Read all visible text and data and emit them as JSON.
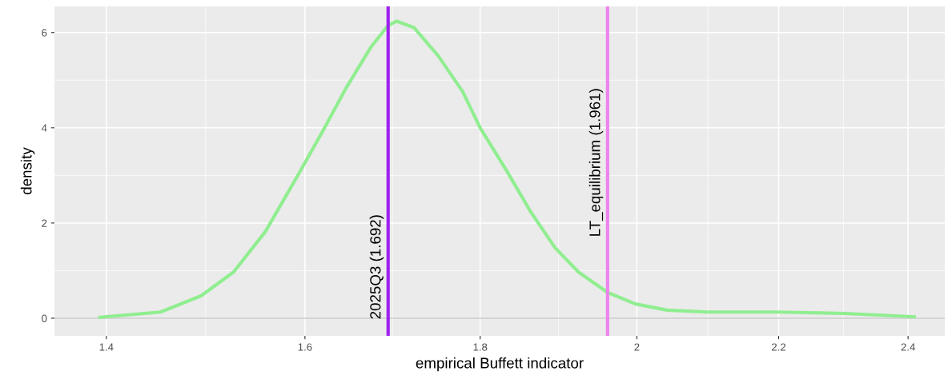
{
  "chart_data": {
    "type": "line",
    "xlabel": "empirical Buffett indicator",
    "ylabel": "density",
    "log": "x",
    "xlim": [
      1.352,
      2.46
    ],
    "ylim": [
      -0.37,
      6.55
    ],
    "xticks": [
      1.4,
      1.6,
      1.8,
      2,
      2.2,
      2.4
    ],
    "yticks": [
      0,
      2,
      4,
      6
    ],
    "grid": true,
    "series": [
      {
        "color": "#90ee90",
        "x": [
          1.394,
          1.452,
          1.492,
          1.525,
          1.558,
          1.592,
          1.619,
          1.645,
          1.672,
          1.692,
          1.702,
          1.722,
          1.75,
          1.779,
          1.8,
          1.833,
          1.862,
          1.893,
          1.923,
          1.961,
          1.998,
          2.041,
          2.097,
          2.2,
          2.3,
          2.41
        ],
        "values": [
          0.02,
          0.13,
          0.47,
          0.97,
          1.82,
          2.99,
          3.92,
          4.84,
          5.68,
          6.15,
          6.24,
          6.1,
          5.51,
          4.76,
          4.0,
          3.08,
          2.24,
          1.48,
          0.97,
          0.54,
          0.3,
          0.17,
          0.13,
          0.13,
          0.1,
          0.03
        ]
      }
    ],
    "ref_lines": [
      {
        "axis": "y",
        "value": 0,
        "color": "#c8c8c8"
      },
      {
        "axis": "x",
        "value": 1.692,
        "label": "2025Q3 (1.692)",
        "color": "#a020f0"
      },
      {
        "axis": "x",
        "value": 1.961,
        "label": "LT_equilibrium (1.961)",
        "color": "#ee82ee"
      }
    ]
  }
}
